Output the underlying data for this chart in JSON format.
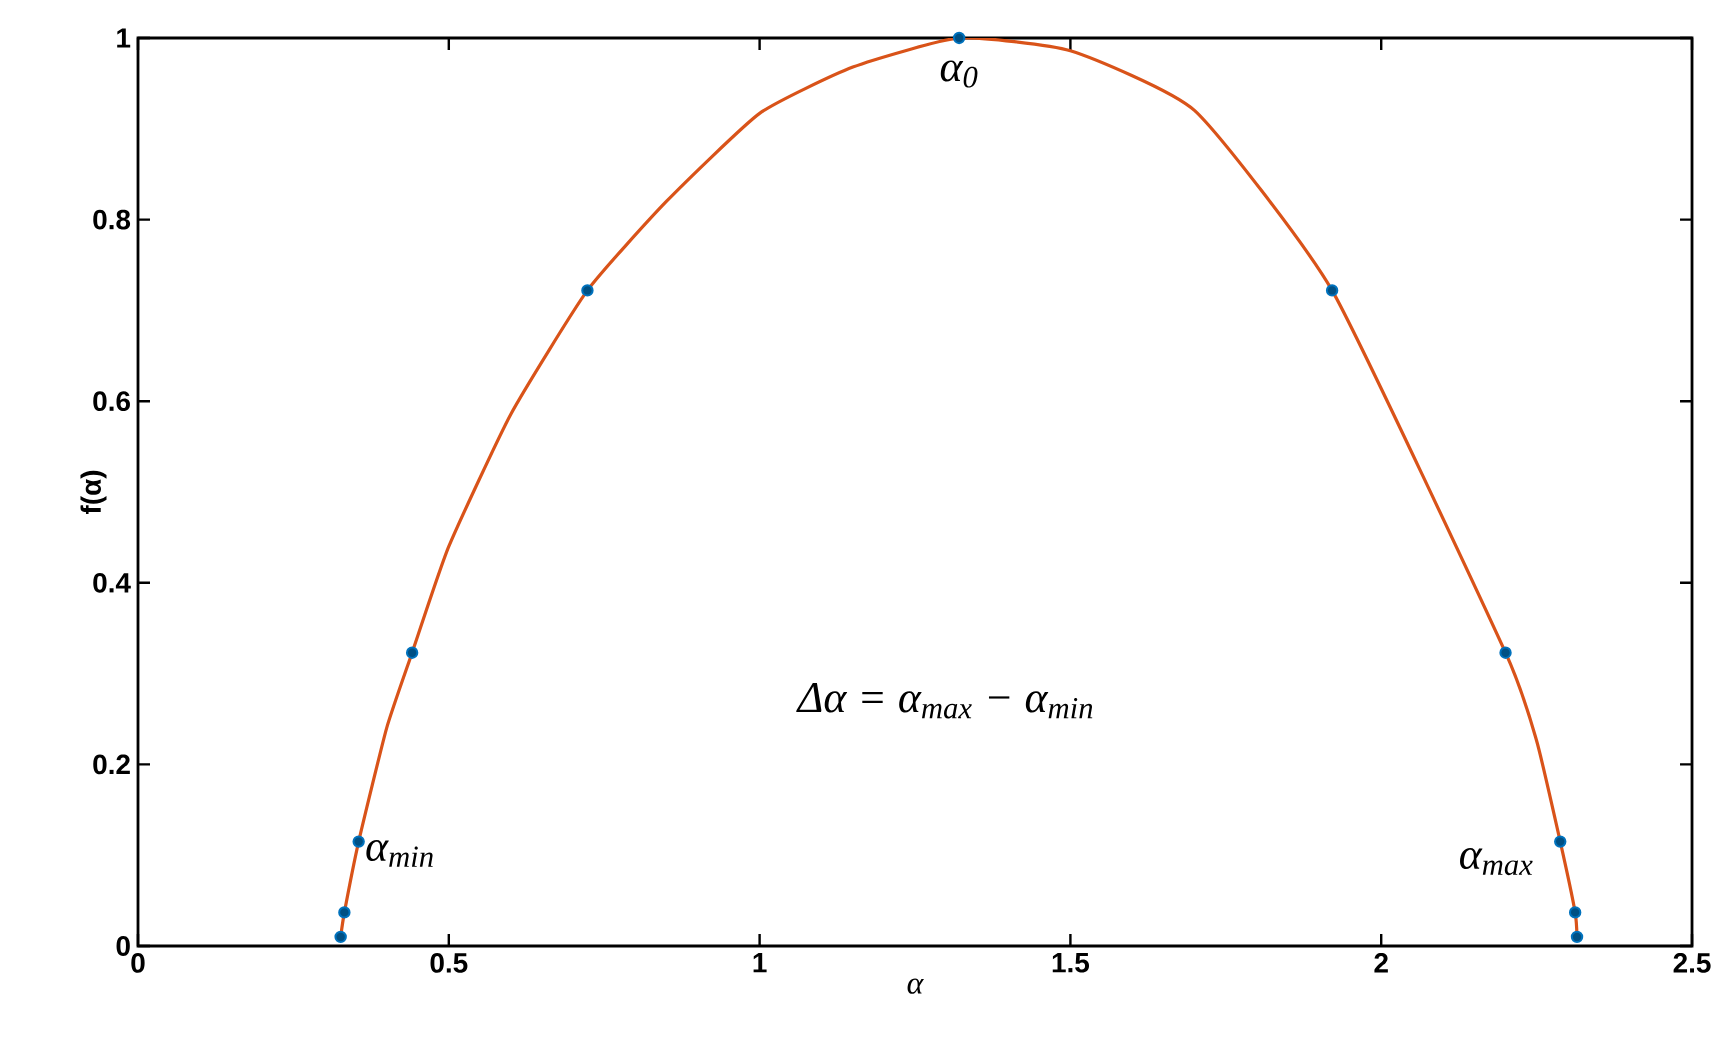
{
  "chart_data": {
    "type": "line",
    "xlabel": "α",
    "ylabel": "f(α)",
    "xlim": [
      0,
      2.5
    ],
    "ylim": [
      0,
      1
    ],
    "xticks": [
      0,
      0.5,
      1,
      1.5,
      2,
      2.5
    ],
    "yticks": [
      0,
      0.2,
      0.4,
      0.6,
      0.8,
      1
    ],
    "grid": false,
    "series": [
      {
        "color": "#d95319",
        "line_style": "solid",
        "x": [
          0.326,
          0.332,
          0.355,
          0.4,
          0.441,
          0.5,
          0.6,
          0.723,
          0.85,
          1.0,
          1.15,
          1.321,
          1.5,
          1.7,
          1.921,
          2.2,
          2.25,
          2.288,
          2.312,
          2.315
        ],
        "values": [
          0.01,
          0.037,
          0.115,
          0.24,
          0.323,
          0.44,
          0.586,
          0.722,
          0.82,
          0.917,
          0.968,
          1.0,
          0.986,
          0.92,
          0.722,
          0.323,
          0.226,
          0.115,
          0.037,
          0.01
        ]
      },
      {
        "type": "scatter",
        "color": "#0072bd",
        "marker": "circle",
        "x": [
          0.326,
          0.332,
          0.355,
          0.441,
          0.723,
          1.321,
          1.921,
          2.2,
          2.288,
          2.312,
          2.315
        ],
        "values": [
          0.01,
          0.037,
          0.115,
          0.323,
          0.722,
          1.0,
          0.722,
          0.323,
          0.115,
          0.037,
          0.01
        ]
      }
    ],
    "annotations": [
      {
        "text": "α$_{0}$",
        "x": 1.321,
        "y": 1.0
      },
      {
        "text": "α$_{min}$",
        "x": 0.355,
        "y": 0.115
      },
      {
        "text": "α$_{max}$",
        "x": 2.288,
        "y": 0.115
      },
      "Δα = α$_{max}$ − α$_{min}$"
    ]
  }
}
